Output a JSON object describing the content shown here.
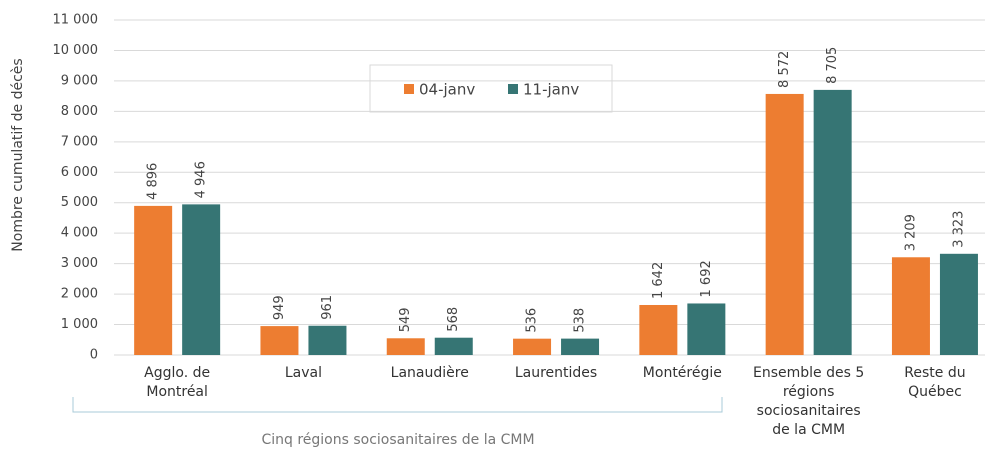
{
  "chart_data": {
    "type": "bar",
    "y_label": "Nombre cumulatif de décès",
    "categories": [
      "Agglo. de\nMontréal",
      "Laval",
      "Lanaudière",
      "Laurentides",
      "Montérégie",
      "Ensemble des 5\nrégions\nsociosanitaires\nde la CMM",
      "Reste du\nQuébec"
    ],
    "series": [
      {
        "name": "04-janv",
        "color": "#ed7d31",
        "values": [
          4896,
          949,
          549,
          536,
          1642,
          8572,
          3209
        ],
        "value_labels": [
          "4 896",
          "949",
          "549",
          "536",
          "1 642",
          "8 572",
          "3 209"
        ]
      },
      {
        "name": "11-janv",
        "color": "#367574",
        "values": [
          4946,
          961,
          568,
          538,
          1692,
          8705,
          3323
        ],
        "value_labels": [
          "4 946",
          "961",
          "568",
          "538",
          "1 692",
          "8 705",
          "3 323"
        ]
      }
    ],
    "annotation": "Cinq régions sociosanitaires de la CMM",
    "ylim": [
      0,
      11000
    ],
    "yticks": [
      0,
      {
        "value": 1000,
        "label": "1 000"
      },
      {
        "value": 2000,
        "label": "2 000"
      },
      {
        "value": 3000,
        "label": "3 000"
      },
      {
        "value": 4000,
        "label": "4 000"
      },
      {
        "value": 5000,
        "label": "5 000"
      },
      {
        "value": 6000,
        "label": "6 000"
      },
      {
        "value": 7000,
        "label": "7 000"
      },
      {
        "value": 8000,
        "label": "8 000"
      },
      {
        "value": 9000,
        "label": "9 000"
      },
      {
        "value": 10000,
        "label": "10 000"
      },
      {
        "value": 11000,
        "label": "11 000"
      }
    ],
    "grid": true
  }
}
